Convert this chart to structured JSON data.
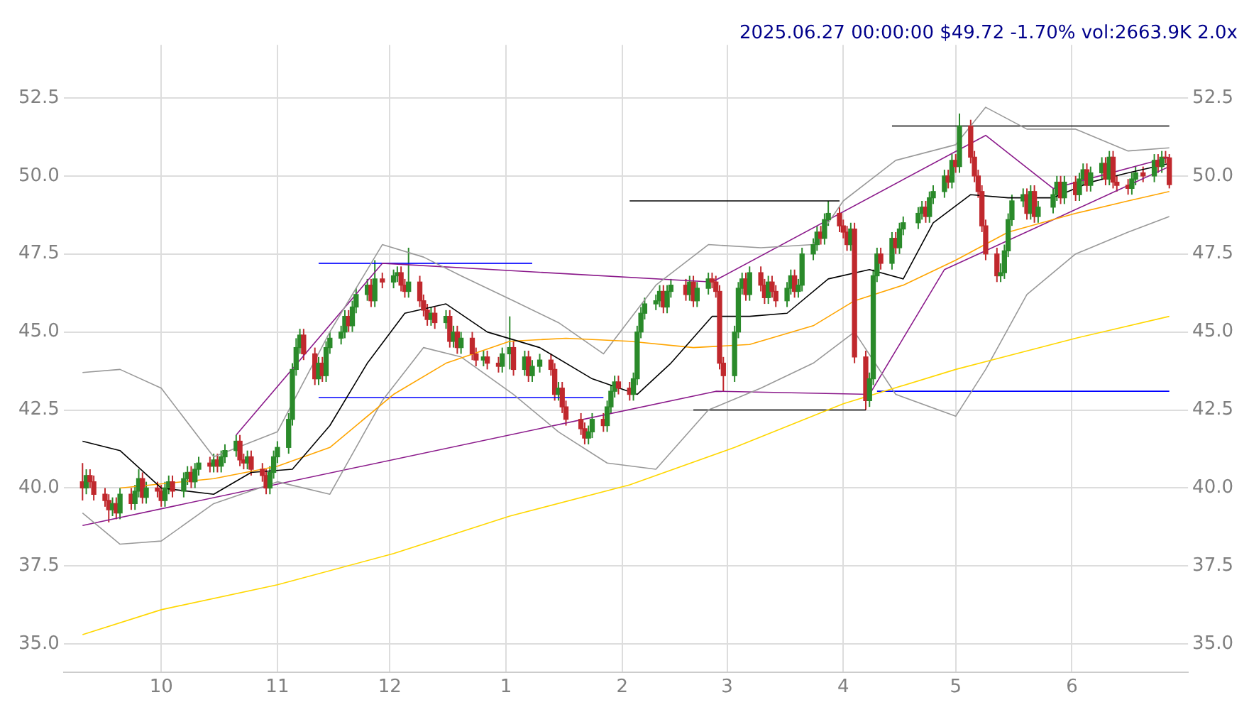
{
  "chart_data": {
    "type": "candlestick",
    "title": "2025.06.27 00:00:00 $49.72 -1.70% vol:2663.9K 2.0x",
    "x": [
      "2024-09-10",
      "2024-09-11",
      "2024-09-12",
      "2024-09-13",
      "2024-09-16",
      "2024-09-17",
      "2024-09-18",
      "2024-09-19",
      "2024-09-20",
      "2024-09-23",
      "2024-09-24",
      "2024-09-25",
      "2024-09-26",
      "2024-09-27",
      "2024-09-30",
      "2024-10-01",
      "2024-10-02",
      "2024-10-03",
      "2024-10-04",
      "2024-10-07",
      "2024-10-08",
      "2024-10-09",
      "2024-10-10",
      "2024-10-11",
      "2024-10-14",
      "2024-10-15",
      "2024-10-16",
      "2024-10-17",
      "2024-10-18",
      "2024-10-21",
      "2024-10-22",
      "2024-10-23",
      "2024-10-24",
      "2024-10-25",
      "2024-10-28",
      "2024-10-29",
      "2024-10-30",
      "2024-10-31",
      "2024-11-01",
      "2024-11-04",
      "2024-11-05",
      "2024-11-06",
      "2024-11-07",
      "2024-11-08",
      "2024-11-11",
      "2024-11-12",
      "2024-11-13",
      "2024-11-14",
      "2024-11-15",
      "2024-11-18",
      "2024-11-19",
      "2024-11-20",
      "2024-11-21",
      "2024-11-22",
      "2024-11-25",
      "2024-11-26",
      "2024-11-27",
      "2024-11-29",
      "2024-12-02",
      "2024-12-03",
      "2024-12-04",
      "2024-12-05",
      "2024-12-06",
      "2024-12-09",
      "2024-12-10",
      "2024-12-11",
      "2024-12-12",
      "2024-12-13",
      "2024-12-16",
      "2024-12-17",
      "2024-12-18",
      "2024-12-19",
      "2024-12-20",
      "2024-12-23",
      "2024-12-24",
      "2024-12-26",
      "2024-12-27",
      "2024-12-30",
      "2024-12-31",
      "2025-01-02",
      "2025-01-03",
      "2025-01-06",
      "2025-01-07",
      "2025-01-08",
      "2025-01-10",
      "2025-01-13",
      "2025-01-14",
      "2025-01-15",
      "2025-01-16",
      "2025-01-17",
      "2025-01-21",
      "2025-01-22",
      "2025-01-23",
      "2025-01-24",
      "2025-01-27",
      "2025-01-28",
      "2025-01-29",
      "2025-01-30",
      "2025-01-31",
      "2025-02-03",
      "2025-02-04",
      "2025-02-05",
      "2025-02-06",
      "2025-02-07",
      "2025-02-10",
      "2025-02-11",
      "2025-02-12",
      "2025-02-13",
      "2025-02-14",
      "2025-02-18",
      "2025-02-19",
      "2025-02-20",
      "2025-02-21",
      "2025-02-24",
      "2025-02-25",
      "2025-02-26",
      "2025-02-27",
      "2025-02-28",
      "2025-03-03",
      "2025-03-04",
      "2025-03-05",
      "2025-03-06",
      "2025-03-07",
      "2025-03-10",
      "2025-03-11",
      "2025-03-12",
      "2025-03-13",
      "2025-03-14",
      "2025-03-17",
      "2025-03-18",
      "2025-03-19",
      "2025-03-20",
      "2025-03-21",
      "2025-03-24",
      "2025-03-25",
      "2025-03-26",
      "2025-03-27",
      "2025-03-28",
      "2025-03-31",
      "2025-04-01",
      "2025-04-02",
      "2025-04-03",
      "2025-04-04",
      "2025-04-07",
      "2025-04-08",
      "2025-04-09",
      "2025-04-10",
      "2025-04-11",
      "2025-04-14",
      "2025-04-15",
      "2025-04-16",
      "2025-04-17",
      "2025-04-21",
      "2025-04-22",
      "2025-04-23",
      "2025-04-24",
      "2025-04-25",
      "2025-04-28",
      "2025-04-29",
      "2025-04-30",
      "2025-05-01",
      "2025-05-02",
      "2025-05-05",
      "2025-05-06",
      "2025-05-07",
      "2025-05-08",
      "2025-05-09",
      "2025-05-12",
      "2025-05-13",
      "2025-05-14",
      "2025-05-15",
      "2025-05-16",
      "2025-05-19",
      "2025-05-20",
      "2025-05-21",
      "2025-05-22",
      "2025-05-23",
      "2025-05-27",
      "2025-05-28",
      "2025-05-29",
      "2025-05-30",
      "2025-06-02",
      "2025-06-03",
      "2025-06-04",
      "2025-06-05",
      "2025-06-06",
      "2025-06-09",
      "2025-06-10",
      "2025-06-11",
      "2025-06-12",
      "2025-06-13",
      "2025-06-16",
      "2025-06-17",
      "2025-06-18",
      "2025-06-20",
      "2025-06-23",
      "2025-06-24",
      "2025-06-25",
      "2025-06-26",
      "2025-06-27"
    ],
    "ohlc": [
      [
        40.2,
        40.8,
        39.6,
        40.0
      ],
      [
        40.0,
        40.6,
        39.8,
        40.4
      ],
      [
        40.4,
        40.6,
        40.0,
        40.2
      ],
      [
        40.2,
        40.4,
        39.6,
        39.8
      ],
      [
        39.8,
        40.0,
        39.4,
        39.6
      ],
      [
        39.6,
        39.8,
        38.9,
        39.3
      ],
      [
        39.3,
        39.7,
        39.1,
        39.5
      ],
      [
        39.5,
        39.7,
        39.0,
        39.2
      ],
      [
        39.2,
        40.0,
        39.0,
        39.8
      ],
      [
        39.8,
        40.0,
        39.3,
        39.5
      ],
      [
        39.5,
        40.1,
        39.3,
        39.9
      ],
      [
        39.9,
        40.6,
        39.7,
        40.3
      ],
      [
        40.3,
        40.5,
        39.5,
        39.7
      ],
      [
        39.7,
        40.2,
        39.5,
        40.0
      ],
      [
        40.0,
        40.2,
        39.7,
        39.9
      ],
      [
        39.9,
        40.1,
        39.4,
        39.6
      ],
      [
        39.6,
        40.2,
        39.4,
        40.0
      ],
      [
        40.0,
        40.4,
        39.8,
        40.2
      ],
      [
        40.2,
        40.4,
        39.7,
        39.9
      ],
      [
        39.9,
        40.5,
        39.7,
        40.3
      ],
      [
        40.3,
        40.7,
        40.1,
        40.5
      ],
      [
        40.5,
        40.7,
        40.0,
        40.2
      ],
      [
        40.2,
        40.8,
        40.0,
        40.6
      ],
      [
        40.6,
        41.0,
        40.4,
        40.8
      ],
      [
        40.8,
        41.0,
        40.5,
        40.7
      ],
      [
        40.7,
        41.1,
        40.5,
        40.9
      ],
      [
        40.9,
        41.1,
        40.5,
        40.7
      ],
      [
        40.7,
        41.2,
        40.5,
        41.0
      ],
      [
        41.0,
        41.4,
        40.8,
        41.2
      ],
      [
        41.2,
        41.7,
        41.0,
        41.5
      ],
      [
        41.5,
        41.7,
        40.7,
        40.9
      ],
      [
        40.9,
        41.1,
        40.6,
        40.8
      ],
      [
        40.8,
        41.2,
        40.6,
        41.0
      ],
      [
        41.0,
        41.2,
        40.4,
        40.6
      ],
      [
        40.6,
        40.8,
        40.2,
        40.4
      ],
      [
        40.4,
        40.6,
        39.8,
        40.0
      ],
      [
        40.0,
        40.7,
        39.8,
        40.5
      ],
      [
        40.5,
        41.2,
        40.3,
        41.0
      ],
      [
        41.0,
        41.5,
        40.8,
        41.3
      ],
      [
        41.3,
        42.4,
        41.1,
        42.2
      ],
      [
        42.2,
        44.0,
        42.0,
        43.8
      ],
      [
        43.8,
        44.8,
        43.6,
        44.5
      ],
      [
        44.5,
        45.1,
        44.3,
        44.9
      ],
      [
        44.9,
        45.1,
        44.1,
        44.3
      ],
      [
        44.3,
        44.5,
        43.3,
        43.5
      ],
      [
        43.5,
        44.2,
        43.3,
        44.0
      ],
      [
        44.0,
        44.2,
        43.4,
        43.6
      ],
      [
        43.6,
        44.7,
        43.4,
        44.5
      ],
      [
        44.5,
        45.0,
        44.3,
        44.8
      ],
      [
        44.8,
        45.2,
        44.6,
        45.0
      ],
      [
        45.0,
        45.7,
        44.8,
        45.5
      ],
      [
        45.5,
        45.7,
        45.0,
        45.2
      ],
      [
        45.2,
        46.0,
        45.0,
        45.8
      ],
      [
        45.8,
        46.4,
        45.6,
        46.2
      ],
      [
        46.2,
        46.7,
        46.0,
        46.5
      ],
      [
        46.5,
        46.7,
        45.8,
        46.0
      ],
      [
        46.0,
        47.3,
        45.8,
        46.7
      ],
      [
        46.7,
        46.9,
        46.4,
        46.6
      ],
      [
        46.6,
        47.0,
        46.4,
        46.8
      ],
      [
        46.8,
        47.1,
        46.6,
        46.9
      ],
      [
        46.9,
        47.1,
        46.3,
        46.5
      ],
      [
        46.5,
        46.7,
        46.1,
        46.3
      ],
      [
        46.3,
        47.7,
        46.1,
        46.6
      ],
      [
        46.6,
        46.8,
        45.8,
        46.0
      ],
      [
        46.0,
        46.2,
        45.5,
        45.7
      ],
      [
        45.7,
        45.9,
        45.2,
        45.4
      ],
      [
        45.4,
        45.8,
        45.2,
        45.6
      ],
      [
        45.6,
        45.8,
        45.1,
        45.3
      ],
      [
        45.3,
        45.7,
        45.1,
        45.5
      ],
      [
        45.5,
        45.7,
        44.5,
        44.7
      ],
      [
        44.7,
        45.2,
        44.5,
        45.0
      ],
      [
        45.0,
        45.2,
        44.3,
        44.5
      ],
      [
        44.5,
        45.0,
        44.3,
        44.8
      ],
      [
        44.8,
        45.0,
        44.1,
        44.3
      ],
      [
        44.3,
        44.5,
        43.9,
        44.1
      ],
      [
        44.1,
        44.4,
        43.9,
        44.2
      ],
      [
        44.2,
        44.4,
        43.8,
        44.0
      ],
      [
        44.0,
        44.2,
        43.7,
        43.9
      ],
      [
        43.9,
        44.5,
        43.7,
        44.3
      ],
      [
        44.3,
        45.5,
        43.8,
        44.5
      ],
      [
        44.5,
        44.7,
        43.6,
        43.8
      ],
      [
        43.8,
        44.4,
        43.6,
        44.2
      ],
      [
        44.2,
        44.4,
        43.4,
        43.6
      ],
      [
        43.6,
        44.1,
        43.4,
        43.9
      ],
      [
        43.9,
        44.3,
        43.7,
        44.1
      ],
      [
        44.1,
        44.3,
        43.6,
        43.8
      ],
      [
        43.8,
        44.0,
        42.8,
        43.0
      ],
      [
        43.0,
        43.4,
        42.8,
        43.2
      ],
      [
        43.2,
        43.4,
        42.4,
        42.6
      ],
      [
        42.6,
        42.8,
        42.0,
        42.2
      ],
      [
        42.2,
        42.4,
        41.7,
        41.9
      ],
      [
        41.9,
        42.1,
        41.4,
        41.6
      ],
      [
        41.6,
        42.0,
        41.4,
        41.8
      ],
      [
        41.8,
        42.4,
        41.6,
        42.2
      ],
      [
        42.2,
        42.4,
        41.8,
        42.0
      ],
      [
        42.0,
        42.8,
        41.8,
        42.6
      ],
      [
        42.6,
        43.3,
        42.4,
        43.1
      ],
      [
        43.1,
        43.6,
        42.9,
        43.4
      ],
      [
        43.4,
        43.6,
        43.0,
        43.2
      ],
      [
        43.2,
        43.4,
        42.8,
        43.0
      ],
      [
        43.0,
        43.7,
        42.8,
        43.5
      ],
      [
        43.5,
        45.2,
        43.3,
        45.0
      ],
      [
        45.0,
        45.8,
        44.8,
        45.6
      ],
      [
        45.6,
        46.1,
        45.4,
        45.9
      ],
      [
        45.9,
        46.2,
        45.7,
        46.0
      ],
      [
        46.0,
        46.5,
        45.8,
        46.3
      ],
      [
        46.3,
        46.5,
        45.6,
        45.8
      ],
      [
        45.8,
        46.5,
        45.6,
        46.3
      ],
      [
        46.3,
        46.7,
        46.1,
        46.5
      ],
      [
        46.5,
        46.7,
        46.0,
        46.2
      ],
      [
        46.2,
        46.8,
        46.0,
        46.6
      ],
      [
        46.6,
        46.8,
        45.8,
        46.0
      ],
      [
        46.0,
        46.6,
        45.8,
        46.4
      ],
      [
        46.4,
        46.9,
        46.2,
        46.7
      ],
      [
        46.7,
        46.9,
        46.4,
        46.6
      ],
      [
        46.6,
        46.8,
        46.1,
        46.3
      ],
      [
        46.3,
        46.5,
        43.8,
        44.0
      ],
      [
        44.0,
        44.2,
        43.1,
        43.6
      ],
      [
        43.6,
        45.2,
        43.4,
        45.0
      ],
      [
        45.0,
        46.6,
        44.8,
        46.4
      ],
      [
        46.4,
        46.9,
        46.2,
        46.7
      ],
      [
        46.7,
        46.9,
        46.0,
        46.2
      ],
      [
        46.2,
        47.1,
        46.0,
        46.9
      ],
      [
        46.9,
        47.1,
        46.3,
        46.5
      ],
      [
        46.5,
        46.7,
        45.9,
        46.1
      ],
      [
        46.1,
        46.8,
        45.9,
        46.6
      ],
      [
        46.6,
        46.8,
        46.1,
        46.3
      ],
      [
        46.3,
        46.5,
        45.8,
        46.0
      ],
      [
        46.0,
        46.6,
        45.8,
        46.4
      ],
      [
        46.4,
        47.0,
        46.2,
        46.8
      ],
      [
        46.8,
        47.0,
        46.1,
        46.3
      ],
      [
        46.3,
        46.7,
        46.1,
        46.5
      ],
      [
        46.5,
        47.7,
        46.3,
        47.5
      ],
      [
        47.5,
        48.0,
        47.3,
        47.8
      ],
      [
        47.8,
        48.4,
        47.6,
        48.2
      ],
      [
        48.2,
        48.4,
        47.8,
        48.0
      ],
      [
        48.0,
        48.8,
        47.8,
        48.6
      ],
      [
        48.6,
        49.2,
        48.4,
        48.8
      ],
      [
        48.8,
        49.0,
        48.2,
        48.4
      ],
      [
        48.4,
        48.6,
        48.0,
        48.2
      ],
      [
        48.2,
        48.4,
        47.6,
        47.8
      ],
      [
        47.8,
        48.5,
        47.6,
        48.3
      ],
      [
        48.3,
        48.5,
        44.0,
        44.2
      ],
      [
        44.2,
        44.4,
        42.5,
        42.8
      ],
      [
        42.8,
        43.7,
        42.6,
        43.5
      ],
      [
        43.5,
        47.0,
        43.3,
        46.8
      ],
      [
        46.8,
        47.7,
        46.6,
        47.5
      ],
      [
        47.5,
        47.7,
        47.0,
        47.2
      ],
      [
        47.2,
        48.2,
        47.0,
        48.0
      ],
      [
        48.0,
        48.2,
        47.5,
        47.7
      ],
      [
        47.7,
        48.5,
        47.5,
        48.3
      ],
      [
        48.3,
        48.7,
        48.1,
        48.5
      ],
      [
        48.5,
        49.0,
        48.3,
        48.8
      ],
      [
        48.8,
        49.2,
        48.6,
        49.0
      ],
      [
        49.0,
        49.2,
        48.5,
        48.7
      ],
      [
        48.7,
        49.5,
        48.5,
        49.3
      ],
      [
        49.3,
        49.7,
        49.1,
        49.5
      ],
      [
        49.5,
        50.2,
        49.3,
        50.0
      ],
      [
        50.0,
        50.2,
        49.6,
        49.8
      ],
      [
        49.8,
        50.7,
        49.6,
        50.5
      ],
      [
        50.5,
        50.7,
        50.1,
        50.3
      ],
      [
        50.3,
        52.0,
        50.1,
        51.6
      ],
      [
        51.6,
        51.8,
        50.4,
        50.6
      ],
      [
        50.6,
        50.8,
        49.8,
        50.0
      ],
      [
        50.0,
        50.2,
        49.3,
        49.5
      ],
      [
        49.5,
        49.7,
        48.2,
        48.4
      ],
      [
        48.4,
        48.6,
        47.3,
        47.5
      ],
      [
        47.5,
        47.7,
        46.6,
        46.8
      ],
      [
        46.8,
        47.2,
        46.6,
        46.9
      ],
      [
        46.9,
        47.8,
        46.7,
        47.6
      ],
      [
        47.6,
        48.8,
        47.4,
        48.6
      ],
      [
        48.6,
        49.4,
        48.4,
        49.2
      ],
      [
        49.2,
        49.6,
        49.0,
        49.4
      ],
      [
        49.4,
        49.6,
        48.6,
        48.8
      ],
      [
        48.8,
        49.7,
        48.6,
        49.5
      ],
      [
        49.5,
        49.7,
        48.5,
        48.7
      ],
      [
        48.7,
        49.2,
        48.5,
        49.0
      ],
      [
        49.0,
        49.6,
        48.8,
        49.4
      ],
      [
        49.4,
        50.0,
        49.2,
        49.8
      ],
      [
        49.8,
        50.0,
        49.1,
        49.3
      ],
      [
        49.3,
        50.0,
        49.1,
        49.8
      ],
      [
        49.8,
        50.0,
        49.2,
        49.4
      ],
      [
        49.4,
        50.1,
        49.2,
        49.9
      ],
      [
        49.9,
        50.4,
        49.7,
        50.2
      ],
      [
        50.2,
        50.4,
        49.5,
        49.7
      ],
      [
        49.7,
        50.3,
        49.5,
        50.1
      ],
      [
        50.1,
        50.6,
        49.9,
        50.4
      ],
      [
        50.4,
        50.6,
        49.7,
        49.9
      ],
      [
        49.9,
        50.8,
        49.7,
        50.6
      ],
      [
        50.6,
        50.8,
        49.6,
        49.8
      ],
      [
        49.8,
        50.0,
        49.5,
        49.7
      ],
      [
        49.7,
        49.9,
        49.4,
        49.6
      ],
      [
        49.6,
        50.1,
        49.4,
        49.9
      ],
      [
        49.9,
        50.3,
        49.7,
        50.1
      ],
      [
        50.1,
        50.3,
        49.8,
        50.0
      ],
      [
        50.0,
        50.7,
        49.8,
        50.5
      ],
      [
        50.5,
        50.7,
        50.1,
        50.3
      ],
      [
        50.3,
        50.8,
        50.1,
        50.6
      ],
      [
        50.6,
        50.8,
        50.4,
        50.58
      ],
      [
        50.58,
        50.7,
        49.6,
        49.72
      ]
    ],
    "series": [
      {
        "type": "line",
        "color": "#000000",
        "x": [
          "2024-09-10",
          "2024-09-20",
          "2024-10-01",
          "2024-10-15",
          "2024-10-25",
          "2024-11-05",
          "2024-11-15",
          "2024-11-25",
          "2024-12-05",
          "2024-12-16",
          "2024-12-27",
          "2025-01-10",
          "2025-01-24",
          "2025-02-05",
          "2025-02-14",
          "2025-02-25",
          "2025-03-07",
          "2025-03-17",
          "2025-03-28",
          "2025-04-08",
          "2025-04-17",
          "2025-04-25",
          "2025-05-05",
          "2025-05-15",
          "2025-05-27",
          "2025-06-06",
          "2025-06-16",
          "2025-06-27"
        ],
        "values": [
          41.5,
          41.2,
          40.0,
          39.8,
          40.5,
          40.6,
          42.0,
          44.0,
          45.6,
          45.9,
          45.0,
          44.5,
          43.5,
          43.0,
          44.0,
          45.5,
          45.5,
          45.6,
          46.7,
          47.0,
          46.7,
          48.5,
          49.4,
          49.3,
          49.3,
          49.8,
          50.1,
          50.4
        ]
      },
      {
        "type": "line",
        "color": "#ffa500",
        "x": [
          "2024-09-20",
          "2024-10-15",
          "2024-11-01",
          "2024-11-15",
          "2024-12-02",
          "2024-12-16",
          "2025-01-02",
          "2025-01-17",
          "2025-02-03",
          "2025-02-20",
          "2025-03-07",
          "2025-03-24",
          "2025-04-04",
          "2025-04-17",
          "2025-05-01",
          "2025-05-15",
          "2025-06-02",
          "2025-06-16",
          "2025-06-27"
        ],
        "values": [
          40.0,
          40.3,
          40.7,
          41.3,
          43.0,
          44.0,
          44.7,
          44.8,
          44.7,
          44.5,
          44.6,
          45.2,
          46.0,
          46.5,
          47.3,
          48.2,
          48.8,
          49.2,
          49.5
        ]
      },
      {
        "type": "line",
        "color": "#ffd700",
        "x": [
          "2024-09-10",
          "2024-10-01",
          "2024-11-01",
          "2024-12-02",
          "2025-01-02",
          "2025-02-03",
          "2025-03-03",
          "2025-04-01",
          "2025-05-01",
          "2025-06-02",
          "2025-06-27"
        ],
        "values": [
          35.3,
          36.1,
          36.9,
          37.9,
          39.1,
          40.1,
          41.3,
          42.7,
          43.8,
          44.8,
          45.5
        ]
      },
      {
        "type": "line",
        "color": "#999999",
        "x": [
          "2024-09-10",
          "2024-09-20",
          "2024-10-01",
          "2024-10-15",
          "2024-11-01",
          "2024-11-15",
          "2024-11-29",
          "2024-12-10",
          "2024-12-20",
          "2025-01-03",
          "2025-01-15",
          "2025-01-27",
          "2025-02-10",
          "2025-02-24",
          "2025-03-10",
          "2025-03-24",
          "2025-04-01",
          "2025-04-15",
          "2025-05-01",
          "2025-05-09",
          "2025-05-20",
          "2025-06-02",
          "2025-06-16",
          "2025-06-27"
        ],
        "values": [
          43.7,
          43.8,
          43.2,
          41.0,
          41.8,
          45.0,
          47.8,
          47.4,
          46.8,
          46.0,
          45.3,
          44.3,
          46.5,
          47.8,
          47.7,
          47.8,
          49.2,
          50.5,
          51.0,
          52.2,
          51.5,
          51.5,
          50.8,
          50.9
        ]
      },
      {
        "type": "line",
        "color": "#999999",
        "x": [
          "2024-09-10",
          "2024-09-20",
          "2024-10-01",
          "2024-10-15",
          "2024-11-01",
          "2024-11-15",
          "2024-11-29",
          "2024-12-10",
          "2024-12-20",
          "2025-01-03",
          "2025-01-15",
          "2025-01-28",
          "2025-02-10",
          "2025-02-24",
          "2025-03-10",
          "2025-03-24",
          "2025-04-04",
          "2025-04-15",
          "2025-05-01",
          "2025-05-09",
          "2025-05-20",
          "2025-06-02",
          "2025-06-16",
          "2025-06-27"
        ],
        "values": [
          39.2,
          38.2,
          38.3,
          39.5,
          40.2,
          39.8,
          42.8,
          44.5,
          44.2,
          43.0,
          41.8,
          40.8,
          40.6,
          42.5,
          43.2,
          44.0,
          45.0,
          43.0,
          42.3,
          43.8,
          46.2,
          47.5,
          48.2,
          48.7
        ]
      },
      {
        "type": "line",
        "color": "#8b1a8b",
        "x": [
          "2024-10-21",
          "2024-11-29",
          "2025-02-25",
          "2025-05-09",
          "2025-05-27",
          "2025-06-27"
        ],
        "values": [
          41.7,
          47.2,
          46.6,
          51.3,
          49.6,
          50.6
        ]
      },
      {
        "type": "line",
        "color": "#8b1a8b",
        "x": [
          "2024-09-10",
          "2025-02-26",
          "2025-04-08",
          "2025-04-28",
          "2025-06-27"
        ],
        "values": [
          38.8,
          43.1,
          43.0,
          47.0,
          50.3
        ]
      },
      {
        "type": "line",
        "color": "#0000ff",
        "x": [
          "2024-11-12",
          "2025-01-08"
        ],
        "values": [
          47.2,
          47.2
        ]
      },
      {
        "type": "line",
        "color": "#0000ff",
        "x": [
          "2024-11-12",
          "2025-01-27"
        ],
        "values": [
          42.9,
          42.9
        ]
      },
      {
        "type": "line",
        "color": "#000000",
        "x": [
          "2025-02-03",
          "2025-03-31"
        ],
        "values": [
          49.2,
          49.2
        ]
      },
      {
        "type": "line",
        "color": "#000000",
        "x": [
          "2025-02-20",
          "2025-04-07"
        ],
        "values": [
          42.5,
          42.5
        ]
      },
      {
        "type": "line",
        "color": "#0000ff",
        "x": [
          "2025-04-10",
          "2025-06-27"
        ],
        "values": [
          43.1,
          43.1
        ]
      },
      {
        "type": "line",
        "color": "#000000",
        "x": [
          "2025-04-14",
          "2025-06-27"
        ],
        "values": [
          51.6,
          51.6
        ]
      }
    ],
    "xlim": [
      "2024-09-05",
      "2025-07-02"
    ],
    "xticks": [
      {
        "value": "2024-10-01",
        "label": "10"
      },
      {
        "value": "2024-11-01",
        "label": "11"
      },
      {
        "value": "2024-12-01",
        "label": "12"
      },
      {
        "value": "2025-01-01",
        "label": "1"
      },
      {
        "value": "2025-02-01",
        "label": "2"
      },
      {
        "value": "2025-03-01",
        "label": "3"
      },
      {
        "value": "2025-04-01",
        "label": "4"
      },
      {
        "value": "2025-05-01",
        "label": "5"
      },
      {
        "value": "2025-06-01",
        "label": "6"
      }
    ],
    "ylim": [
      34.1,
      54.2
    ],
    "yticks": [
      {
        "value": 35,
        "label": "35.0"
      },
      {
        "value": 37.5,
        "label": "37.5"
      },
      {
        "value": 40,
        "label": "40.0"
      },
      {
        "value": 42.5,
        "label": "42.5"
      },
      {
        "value": 45,
        "label": "45.0"
      },
      {
        "value": 47.5,
        "label": "47.5"
      },
      {
        "value": 50,
        "label": "50.0"
      },
      {
        "value": 52.5,
        "label": "52.5"
      }
    ],
    "y2lim": [
      34.1,
      54.2
    ],
    "y2ticks": [
      {
        "value": 35,
        "label": "35.0"
      },
      {
        "value": 37.5,
        "label": "37.5"
      },
      {
        "value": 40,
        "label": "40.0"
      },
      {
        "value": 42.5,
        "label": "42.5"
      },
      {
        "value": 45,
        "label": "45.0"
      },
      {
        "value": 47.5,
        "label": "47.5"
      },
      {
        "value": 50,
        "label": "50.0"
      },
      {
        "value": 52.5,
        "label": "52.5"
      }
    ],
    "grid": true,
    "legend": false
  }
}
